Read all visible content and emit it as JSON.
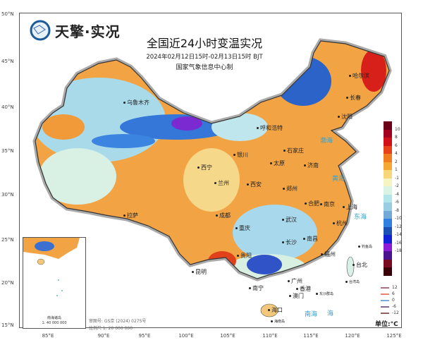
{
  "brand": "天擎·实况",
  "title": "全国近24小时变温实况",
  "subtitle": "2024年02月12日15时-02月13日15时 BJT",
  "issuer": "国家气象信息中心制",
  "lat_labels": [
    "50°N",
    "45°N",
    "40°N",
    "35°N",
    "30°N",
    "25°N",
    "20°N",
    "15°N"
  ],
  "lon_labels": [
    "85°E",
    "90°E",
    "95°E",
    "100°E",
    "105°E",
    "110°E",
    "115°E",
    "120°E",
    "125°E"
  ],
  "cities": [
    "乌鲁木齐",
    "哈尔滨",
    "长春",
    "沈阳",
    "呼和浩特",
    "银川",
    "西宁",
    "兰州",
    "石家庄",
    "太原",
    "济南",
    "西安",
    "郑州",
    "合肥",
    "南京",
    "上海",
    "拉萨",
    "成都",
    "重庆",
    "武汉",
    "杭州",
    "长沙",
    "南昌",
    "贵阳",
    "福州",
    "昆明",
    "南宁",
    "台北",
    "广州",
    "香港",
    "澳门",
    "海口"
  ],
  "seas": [
    "渤海",
    "黄海",
    "东海",
    "南海",
    "海"
  ],
  "islands": [
    "钓鱼岛",
    "台湾岛",
    "东沙群岛",
    "海南岛"
  ],
  "inset": {
    "title": "南海诸岛",
    "scale": "1: 40 000 000"
  },
  "review_no": "审图号: GS京 (2024) 0275号",
  "scale": "比例尺 1: 20 000 000",
  "unit": "单位:°C",
  "colorbar": {
    "labels": [
      "10",
      "8",
      "6",
      "4",
      "2",
      "1",
      "-1",
      "-2",
      "-4",
      "-6",
      "-8",
      "-10",
      "-12",
      "-14",
      "-16",
      "-18"
    ],
    "colors": [
      "#6b0018",
      "#a3001f",
      "#d2101a",
      "#e8421b",
      "#f07d1e",
      "#f6a833",
      "#f8d67a",
      "#f6f4c2",
      "#d9f3e4",
      "#b3e6ea",
      "#98cde3",
      "#72a9d6",
      "#2f80e0",
      "#1c50b2",
      "#1222d8",
      "#8c1ad6",
      "#4b1290",
      "#7a0a22",
      "#3a0008"
    ]
  },
  "contour_legend": [
    {
      "label": "12",
      "color": "#b07080"
    },
    {
      "label": "6",
      "color": "#f08070"
    },
    {
      "label": "0",
      "color": "#7aaad8"
    },
    {
      "label": "-6",
      "color": "#806890"
    },
    {
      "label": "-12",
      "color": "#906060"
    }
  ]
}
